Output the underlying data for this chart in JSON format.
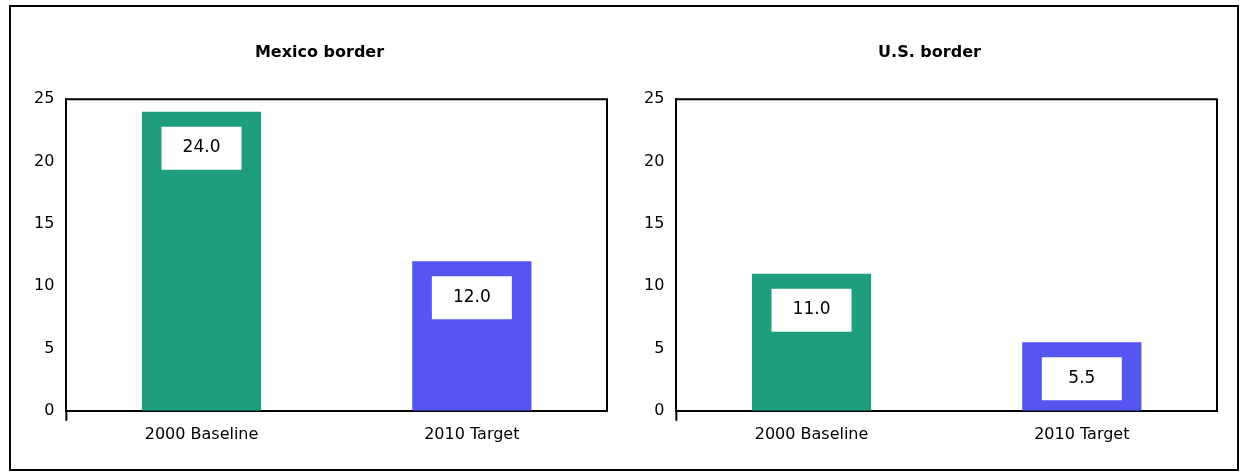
{
  "chart_data": [
    {
      "type": "bar",
      "title": "Mexico border",
      "categories": [
        "2000 Baseline",
        "2010 Target"
      ],
      "values": [
        24.0,
        12.0
      ],
      "colors": [
        "#1f9e7e",
        "#5555f0"
      ],
      "ylim": [
        0,
        25
      ],
      "yticks": [
        0,
        5,
        10,
        15,
        20,
        25
      ],
      "grid": false,
      "data_labels": true,
      "value_labels": [
        "24.0",
        "12.0"
      ]
    },
    {
      "type": "bar",
      "title": "U.S. border",
      "categories": [
        "2000 Baseline",
        "2010 Target"
      ],
      "values": [
        11.0,
        5.5
      ],
      "colors": [
        "#1f9e7e",
        "#5555f0"
      ],
      "ylim": [
        0,
        25
      ],
      "yticks": [
        0,
        5,
        10,
        15,
        20,
        25
      ],
      "grid": false,
      "data_labels": true,
      "value_labels": [
        "11.0",
        "5.5"
      ]
    }
  ]
}
